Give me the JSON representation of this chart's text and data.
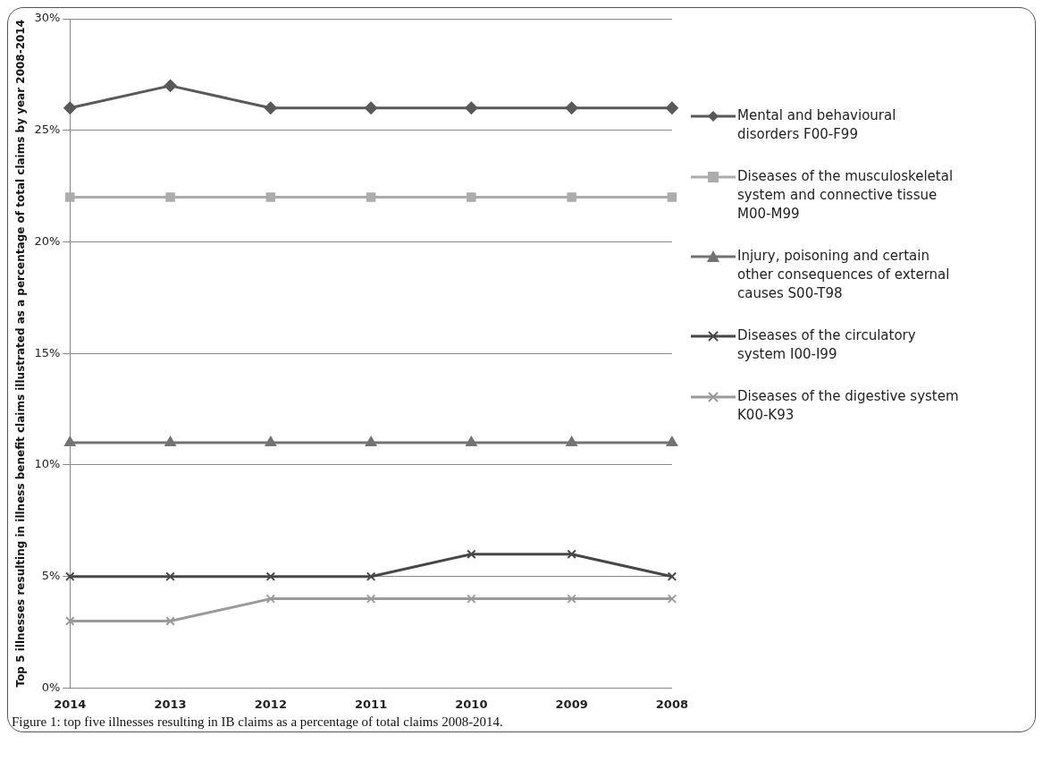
{
  "chart_data": {
    "type": "line",
    "ylabel": "Top 5 illnesses resulting in illness benefit claims illustrated as a percentage of total claims by year 2008-2014",
    "categories": [
      "2014",
      "2013",
      "2012",
      "2011",
      "2010",
      "2009",
      "2008"
    ],
    "series": [
      {
        "name": "Mental and behavioural disorders F00-F99",
        "color": "#595959",
        "marker": "diamond",
        "values": [
          26,
          27,
          26,
          26,
          26,
          26,
          26
        ]
      },
      {
        "name": "Diseases of the musculoskeletal system and connective tissue M00-M99",
        "color": "#acacac",
        "marker": "square",
        "values": [
          22,
          22,
          22,
          22,
          22,
          22,
          22
        ]
      },
      {
        "name": "Injury, poisoning and certain other consequences of external causes S00-T98",
        "color": "#737373",
        "marker": "triangle",
        "values": [
          11,
          11,
          11,
          11,
          11,
          11,
          11
        ]
      },
      {
        "name": "Diseases of the circulatory system I00-I99",
        "color": "#474747",
        "marker": "cross",
        "values": [
          5,
          5,
          5,
          5,
          6,
          6,
          5
        ]
      },
      {
        "name": "Diseases of the digestive system K00-K93",
        "color": "#9a9a9a",
        "marker": "cross",
        "values": [
          3,
          3,
          4,
          4,
          4,
          4,
          4
        ]
      }
    ],
    "ylim": [
      0,
      30
    ],
    "yticks": [
      {
        "value": 0,
        "label": "0%"
      },
      {
        "value": 5,
        "label": "5%"
      },
      {
        "value": 10,
        "label": "10%"
      },
      {
        "value": 15,
        "label": "15%"
      },
      {
        "value": 20,
        "label": "20%"
      },
      {
        "value": 25,
        "label": "25%"
      },
      {
        "value": 30,
        "label": "30%"
      }
    ],
    "grid": "y",
    "legend": "right",
    "line_style": "solid",
    "annotations": [
      "Figure 1: top five illnesses resulting in IB claims as a percentage of total claims 2008-2014."
    ]
  }
}
